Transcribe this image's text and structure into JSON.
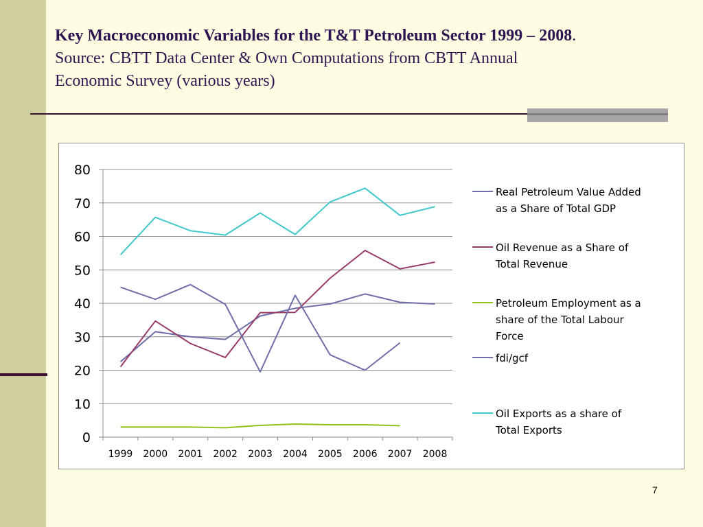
{
  "slide": {
    "title_bold": "Key Macroeconomic Variables  for the T&T Petroleum Sector 1999 – 2008",
    "title_period": ".",
    "source_line1": "Source: CBTT Data Center & Own Computations from CBTT Annual",
    "source_line2": "Economic Survey (various years)",
    "page_number": "7"
  },
  "colors": {
    "background": "#fffde1",
    "left_band": "#cfcf9f",
    "title": "#2e1452",
    "rule": "#3a0f2d"
  },
  "chart_data": {
    "type": "line",
    "title": "",
    "xlabel": "",
    "ylabel": "",
    "categories": [
      "1999",
      "2000",
      "2001",
      "2002",
      "2003",
      "2004",
      "2005",
      "2006",
      "2007",
      "2008"
    ],
    "ylim": [
      0,
      80
    ],
    "yticks": [
      0,
      10,
      20,
      30,
      40,
      50,
      60,
      70,
      80
    ],
    "grid": true,
    "legend_position": "right",
    "series": [
      {
        "name_lines": [
          "Real Petroleum Value Added",
          "as a Share of Total GDP"
        ],
        "color": "#6d6ea9",
        "values": [
          22.5,
          31.5,
          30.0,
          29.2,
          36.2,
          38.5,
          39.8,
          42.8,
          40.3,
          39.8
        ]
      },
      {
        "name_lines": [
          "Oil Revenue as a Share of",
          "Total Revenue"
        ],
        "color": "#993b68",
        "values": [
          21.0,
          34.7,
          28.0,
          23.8,
          37.2,
          37.3,
          47.5,
          55.8,
          50.3,
          52.3
        ]
      },
      {
        "name_lines": [
          "Petroleum Employment as a",
          "share of the Total Labour",
          "Force"
        ],
        "color": "#8fc21b",
        "values": [
          3.0,
          3.0,
          3.0,
          2.8,
          3.5,
          3.9,
          3.7,
          3.7,
          3.4,
          null
        ]
      },
      {
        "name_lines": [
          "fdi/gcf"
        ],
        "color": "#6d6ea9",
        "values": [
          44.8,
          41.2,
          45.6,
          39.7,
          19.5,
          42.4,
          24.6,
          20.0,
          28.2,
          null
        ]
      },
      {
        "name_lines": [
          "Oil Exports as a share of",
          "Total Exports"
        ],
        "color": "#3fc8cb",
        "values": [
          54.5,
          65.7,
          61.7,
          60.4,
          67.0,
          60.6,
          70.3,
          74.4,
          66.3,
          68.9
        ]
      }
    ]
  }
}
